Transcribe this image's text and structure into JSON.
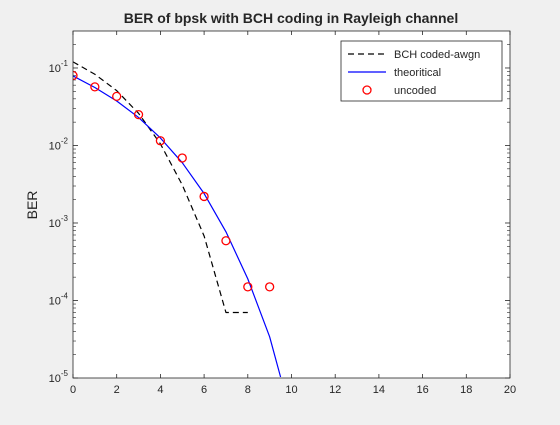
{
  "colors": {
    "figure_bg": "#f0f0f0",
    "axes_bg": "#ffffff",
    "axis": "#262626",
    "bch": "#000000",
    "theory": "#0000ff",
    "uncoded": "#ff0000"
  },
  "chart_data": {
    "type": "line",
    "title": "BER of bpsk with BCH coding in Rayleigh channel",
    "xlabel": "",
    "ylabel": "BER",
    "xlim": [
      0,
      20
    ],
    "ylim": [
      1e-05,
      0.3
    ],
    "yscale": "log",
    "grid": false,
    "legend_position": "top-right",
    "x_ticks": [
      "0",
      "2",
      "4",
      "6",
      "8",
      "10",
      "12",
      "14",
      "16",
      "18",
      "20"
    ],
    "y_ticks": [
      {
        "base": "10",
        "exp": "-1",
        "value": 0.1
      },
      {
        "base": "10",
        "exp": "-2",
        "value": 0.01
      },
      {
        "base": "10",
        "exp": "-3",
        "value": 0.001
      },
      {
        "base": "10",
        "exp": "-4",
        "value": 0.0001
      },
      {
        "base": "10",
        "exp": "-5",
        "value": 1e-05
      }
    ],
    "series": [
      {
        "name": "BCH coded-awgn",
        "style": "dashed",
        "color": "#000000",
        "x": [
          0,
          1,
          2,
          3,
          4,
          5,
          6,
          7,
          8
        ],
        "y": [
          0.12,
          0.083,
          0.051,
          0.026,
          0.0105,
          0.0031,
          0.00068,
          7e-05,
          7e-05
        ]
      },
      {
        "name": "theoritical",
        "style": "solid",
        "color": "#0000ff",
        "x": [
          0,
          1,
          2,
          3,
          4,
          5,
          6,
          7,
          8,
          9,
          9.5
        ],
        "y": [
          0.079,
          0.056,
          0.0375,
          0.023,
          0.0125,
          0.006,
          0.0024,
          0.00077,
          0.00019,
          3.4e-05,
          1.03e-05
        ]
      },
      {
        "name": "uncoded",
        "style": "markers",
        "marker": "circle",
        "color": "#ff0000",
        "x": [
          0,
          1,
          2,
          3,
          4,
          5,
          6,
          7,
          8,
          9
        ],
        "y": [
          0.08,
          0.057,
          0.043,
          0.025,
          0.0115,
          0.0069,
          0.0022,
          0.00059,
          0.00015,
          0.00015
        ]
      }
    ]
  }
}
